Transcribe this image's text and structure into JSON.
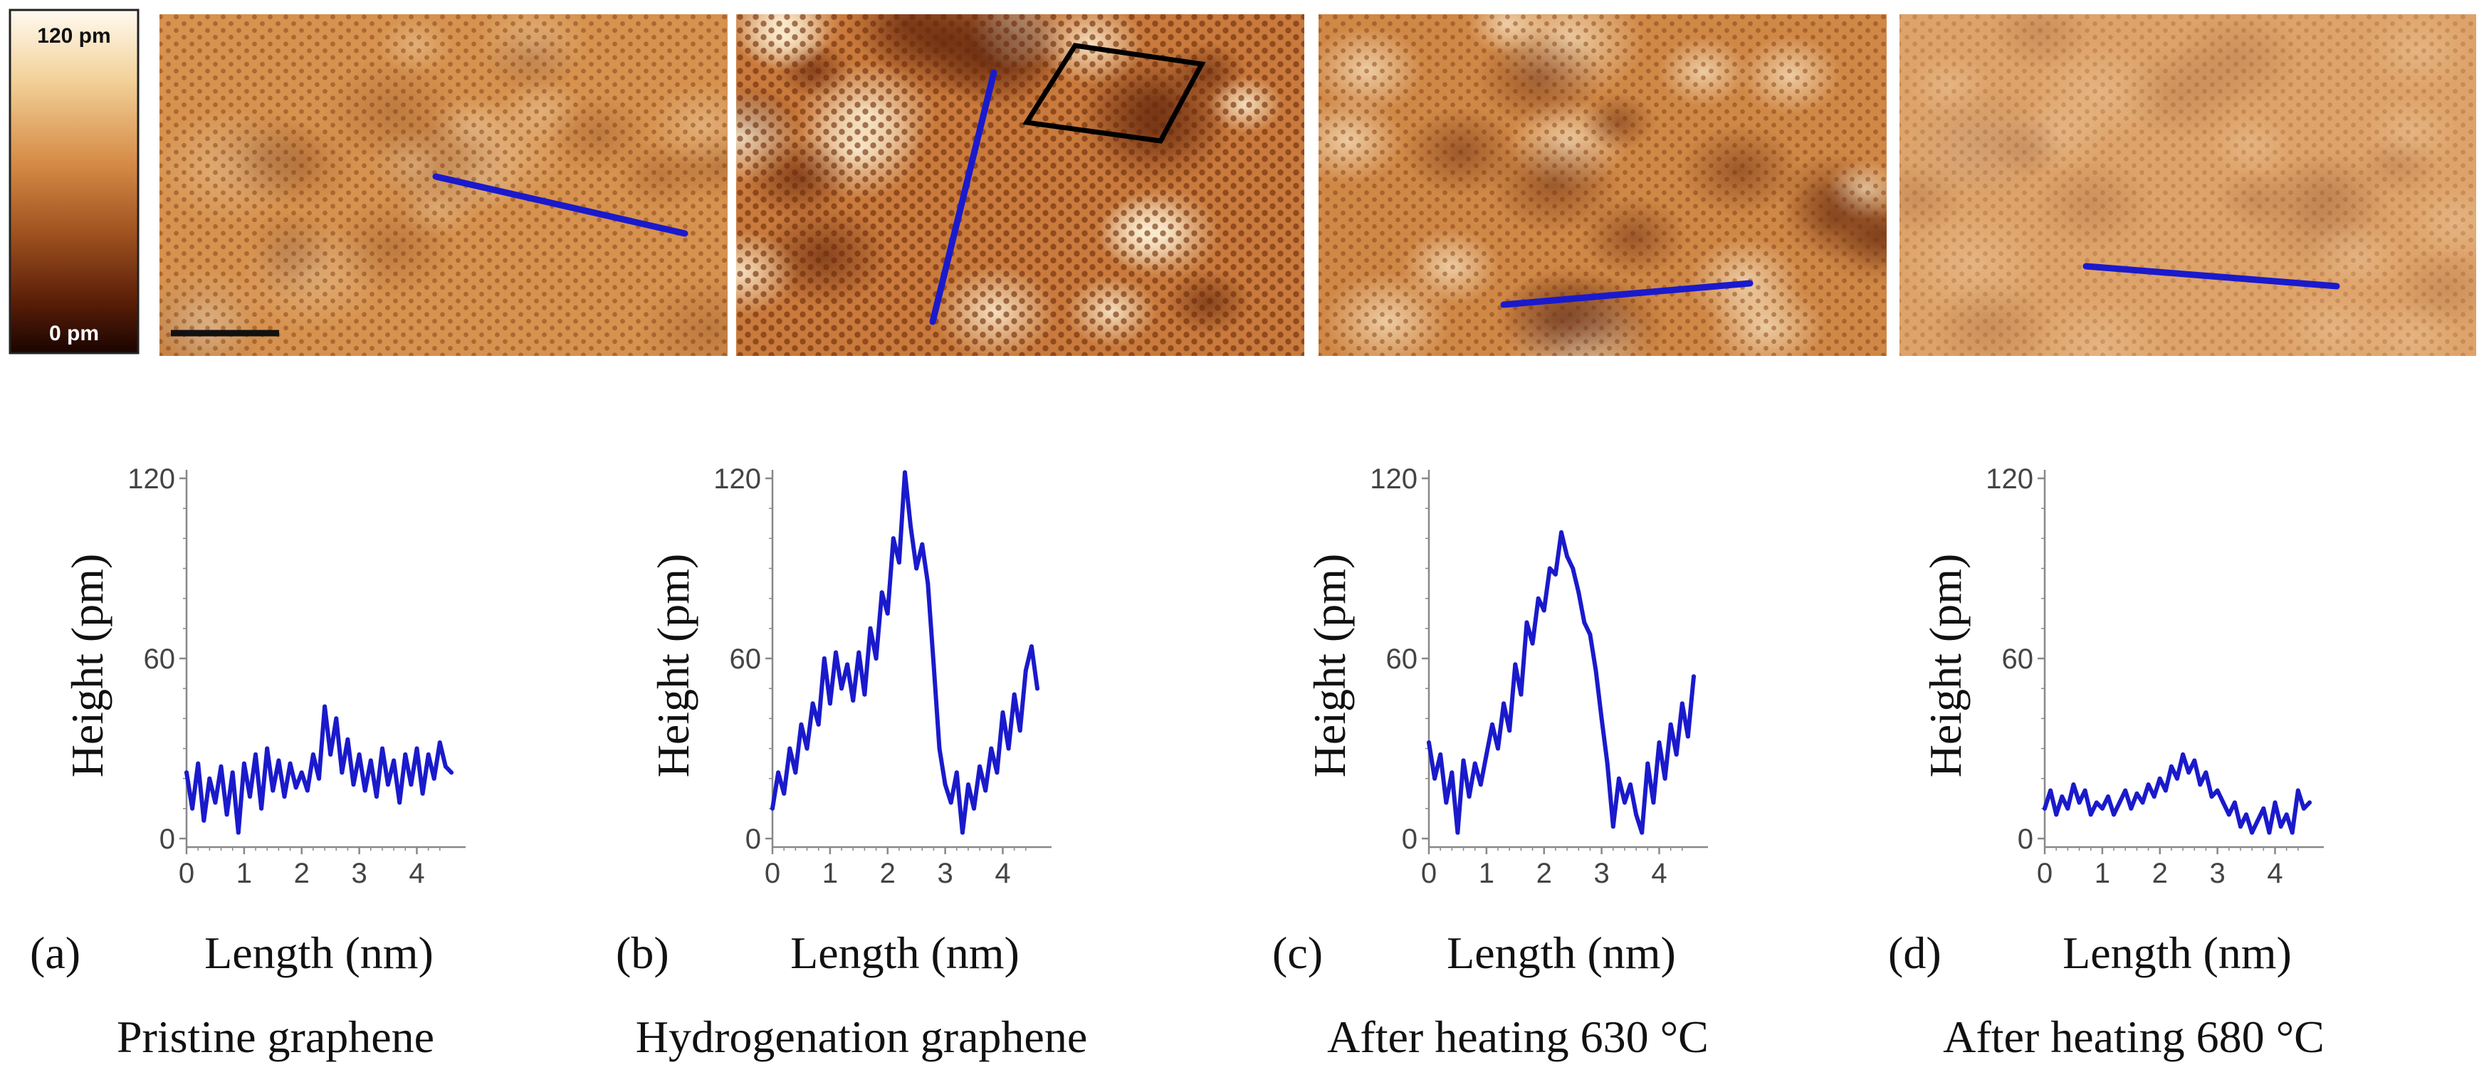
{
  "colorbar": {
    "max_label": "120 pm",
    "min_label": "0 pm",
    "colors": [
      "#fffaf0",
      "#f3d29a",
      "#d58a45",
      "#a0521f",
      "#5a1e08",
      "#1a0400"
    ]
  },
  "images": [
    {
      "id": "a",
      "tone": "#d6924e",
      "contrast": 0.35,
      "has_scale_bar": true,
      "has_cell": false
    },
    {
      "id": "b",
      "tone": "#c97a3c",
      "contrast": 1.0,
      "has_scale_bar": false,
      "has_cell": true
    },
    {
      "id": "c",
      "tone": "#d08846",
      "contrast": 0.75,
      "has_scale_bar": false,
      "has_cell": false
    },
    {
      "id": "d",
      "tone": "#dea36a",
      "contrast": 0.25,
      "has_scale_bar": false,
      "has_cell": false
    }
  ],
  "colors": {
    "line": "#1a1acc",
    "axis": "#888888",
    "text": "#111111",
    "cell": "#000000"
  },
  "chart_data": [
    {
      "type": "line",
      "panel": "(a)",
      "caption": "Pristine graphene",
      "xlabel": "Length (nm)",
      "ylabel": "Height (pm)",
      "xlim": [
        0,
        4.6
      ],
      "ylim": [
        0,
        120
      ],
      "xticks": [
        "0",
        "1",
        "2",
        "3",
        "4"
      ],
      "yticks": [
        "0",
        "60",
        "120"
      ],
      "x": [
        0,
        0.1,
        0.2,
        0.3,
        0.4,
        0.5,
        0.6,
        0.7,
        0.8,
        0.9,
        1.0,
        1.1,
        1.2,
        1.3,
        1.4,
        1.5,
        1.6,
        1.7,
        1.8,
        1.9,
        2.0,
        2.1,
        2.2,
        2.3,
        2.4,
        2.5,
        2.6,
        2.7,
        2.8,
        2.9,
        3.0,
        3.1,
        3.2,
        3.3,
        3.4,
        3.5,
        3.6,
        3.7,
        3.8,
        3.9,
        4.0,
        4.1,
        4.2,
        4.3,
        4.4,
        4.5,
        4.6
      ],
      "y": [
        22,
        10,
        25,
        6,
        20,
        12,
        24,
        8,
        22,
        2,
        25,
        14,
        28,
        10,
        30,
        16,
        26,
        14,
        25,
        17,
        22,
        16,
        28,
        20,
        44,
        28,
        40,
        22,
        33,
        18,
        28,
        16,
        26,
        14,
        30,
        18,
        26,
        12,
        28,
        18,
        30,
        15,
        28,
        20,
        32,
        24,
        22
      ]
    },
    {
      "type": "line",
      "panel": "(b)",
      "caption": "Hydrogenation graphene",
      "xlabel": "Length (nm)",
      "ylabel": "Height (pm)",
      "xlim": [
        0,
        4.6
      ],
      "ylim": [
        0,
        120
      ],
      "xticks": [
        "0",
        "1",
        "2",
        "3",
        "4"
      ],
      "yticks": [
        "0",
        "60",
        "120"
      ],
      "x": [
        0,
        0.1,
        0.2,
        0.3,
        0.4,
        0.5,
        0.6,
        0.7,
        0.8,
        0.9,
        1.0,
        1.1,
        1.2,
        1.3,
        1.4,
        1.5,
        1.6,
        1.7,
        1.8,
        1.9,
        2.0,
        2.1,
        2.2,
        2.3,
        2.4,
        2.5,
        2.6,
        2.7,
        2.8,
        2.9,
        3.0,
        3.1,
        3.2,
        3.3,
        3.4,
        3.5,
        3.6,
        3.7,
        3.8,
        3.9,
        4.0,
        4.1,
        4.2,
        4.3,
        4.4,
        4.5,
        4.6
      ],
      "y": [
        10,
        22,
        15,
        30,
        22,
        38,
        30,
        45,
        38,
        60,
        45,
        62,
        50,
        58,
        46,
        62,
        48,
        70,
        60,
        82,
        75,
        100,
        92,
        122,
        104,
        90,
        98,
        85,
        58,
        30,
        18,
        12,
        22,
        2,
        18,
        10,
        24,
        16,
        30,
        22,
        42,
        30,
        48,
        36,
        56,
        64,
        50
      ]
    },
    {
      "type": "line",
      "panel": "(c)",
      "caption": "After heating 630 °C",
      "xlabel": "Length (nm)",
      "ylabel": "Height (pm)",
      "xlim": [
        0,
        4.6
      ],
      "ylim": [
        0,
        120
      ],
      "xticks": [
        "0",
        "1",
        "2",
        "3",
        "4"
      ],
      "yticks": [
        "0",
        "60",
        "120"
      ],
      "x": [
        0,
        0.1,
        0.2,
        0.3,
        0.4,
        0.5,
        0.6,
        0.7,
        0.8,
        0.9,
        1.0,
        1.1,
        1.2,
        1.3,
        1.4,
        1.5,
        1.6,
        1.7,
        1.8,
        1.9,
        2.0,
        2.1,
        2.2,
        2.3,
        2.4,
        2.5,
        2.6,
        2.7,
        2.8,
        2.9,
        3.0,
        3.1,
        3.2,
        3.3,
        3.4,
        3.5,
        3.6,
        3.7,
        3.8,
        3.9,
        4.0,
        4.1,
        4.2,
        4.3,
        4.4,
        4.5,
        4.6
      ],
      "y": [
        32,
        20,
        28,
        12,
        22,
        2,
        26,
        14,
        25,
        18,
        28,
        38,
        30,
        45,
        36,
        58,
        48,
        72,
        65,
        80,
        76,
        90,
        88,
        102,
        94,
        90,
        82,
        72,
        68,
        56,
        40,
        25,
        4,
        20,
        12,
        18,
        8,
        2,
        25,
        12,
        32,
        20,
        38,
        28,
        45,
        34,
        54
      ]
    },
    {
      "type": "line",
      "panel": "(d)",
      "caption": "After heating 680 °C",
      "xlabel": "Length (nm)",
      "ylabel": "Height (pm)",
      "xlim": [
        0,
        4.6
      ],
      "ylim": [
        0,
        120
      ],
      "xticks": [
        "0",
        "1",
        "2",
        "3",
        "4"
      ],
      "yticks": [
        "0",
        "60",
        "120"
      ],
      "x": [
        0,
        0.1,
        0.2,
        0.3,
        0.4,
        0.5,
        0.6,
        0.7,
        0.8,
        0.9,
        1.0,
        1.1,
        1.2,
        1.3,
        1.4,
        1.5,
        1.6,
        1.7,
        1.8,
        1.9,
        2.0,
        2.1,
        2.2,
        2.3,
        2.4,
        2.5,
        2.6,
        2.7,
        2.8,
        2.9,
        3.0,
        3.1,
        3.2,
        3.3,
        3.4,
        3.5,
        3.6,
        3.7,
        3.8,
        3.9,
        4.0,
        4.1,
        4.2,
        4.3,
        4.4,
        4.5,
        4.6
      ],
      "y": [
        10,
        16,
        8,
        14,
        10,
        18,
        12,
        16,
        8,
        12,
        10,
        14,
        8,
        12,
        16,
        10,
        15,
        12,
        18,
        14,
        20,
        16,
        24,
        20,
        28,
        22,
        26,
        18,
        22,
        14,
        16,
        12,
        8,
        12,
        4,
        8,
        2,
        6,
        10,
        2,
        12,
        4,
        8,
        2,
        16,
        10,
        12
      ]
    }
  ]
}
